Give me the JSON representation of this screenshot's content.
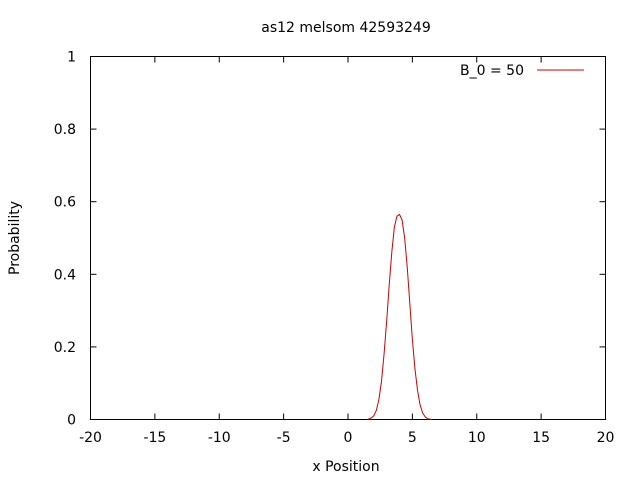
{
  "chart_data": {
    "type": "line",
    "title": "as12 melsom 42593249",
    "xlabel": "x Position",
    "ylabel": "Probability",
    "xlim": [
      -20,
      20
    ],
    "ylim": [
      0,
      1
    ],
    "xticks": [
      -20,
      -15,
      -10,
      -5,
      0,
      5,
      10,
      15,
      20
    ],
    "xtick_labels": [
      "-20",
      "-15",
      "-10",
      "-5",
      "0",
      "5",
      "10",
      "15",
      "20"
    ],
    "yticks": [
      0,
      0.2,
      0.4,
      0.6,
      0.8,
      1
    ],
    "ytick_labels": [
      "0",
      "0.2",
      "0.4",
      "0.6",
      "0.8",
      "1"
    ],
    "grid": false,
    "legend_position": "top-right",
    "series": [
      {
        "name": "B_0 = 50",
        "color": "#cc0000",
        "x": [
          1.5,
          1.8,
          2.0,
          2.2,
          2.4,
          2.6,
          2.8,
          3.0,
          3.2,
          3.4,
          3.6,
          3.8,
          4.0,
          4.2,
          4.4,
          4.6,
          4.8,
          5.0,
          5.2,
          5.4,
          5.6,
          5.8,
          6.0,
          6.2,
          6.5
        ],
        "y": [
          0.0,
          0.004,
          0.01,
          0.025,
          0.055,
          0.105,
          0.18,
          0.27,
          0.37,
          0.46,
          0.53,
          0.56,
          0.565,
          0.55,
          0.5,
          0.42,
          0.32,
          0.22,
          0.14,
          0.08,
          0.04,
          0.018,
          0.007,
          0.002,
          0.0
        ]
      }
    ]
  }
}
